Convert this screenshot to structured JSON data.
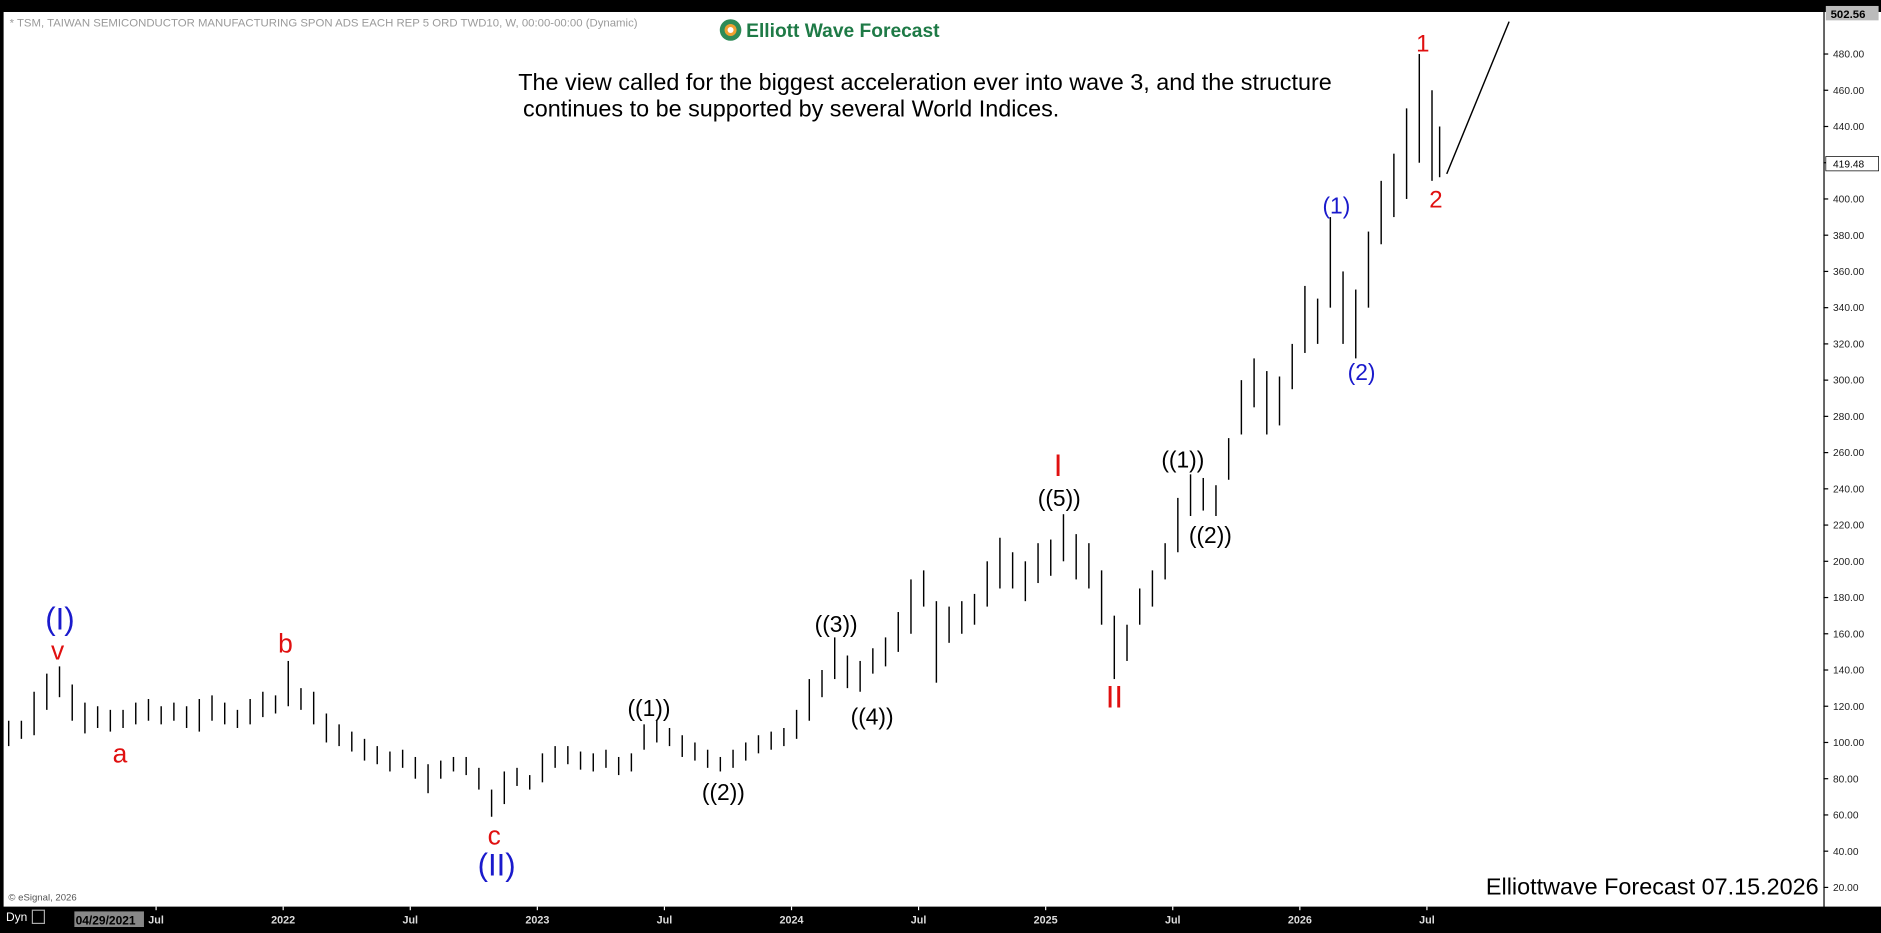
{
  "header": "* TSM, TAIWAN SEMICONDUCTOR MANUFACTURING SPON ADS EACH REP 5 ORD TWD10, W, 00:00-00:00 (Dynamic)",
  "logo": "Elliott Wave Forecast",
  "description": [
    "The view called for the biggest acceleration ever into wave 3, and the structure",
    "continues to be supported by several World Indices."
  ],
  "copyright": "© eSignal, 2026",
  "footer": "Elliottwave Forecast 07.15.2026",
  "mode": "Dyn",
  "cursor_date": "04/29/2021",
  "chart_data": {
    "type": "ohlc",
    "color": "#000000",
    "x": [
      2020.92,
      2020.97,
      2021.02,
      2021.07,
      2021.12,
      2021.17,
      2021.22,
      2021.27,
      2021.32,
      2021.37,
      2021.42,
      2021.47,
      2021.52,
      2021.57,
      2021.62,
      2021.67,
      2021.72,
      2021.77,
      2021.82,
      2021.87,
      2021.92,
      2021.97,
      2022.02,
      2022.07,
      2022.12,
      2022.17,
      2022.22,
      2022.27,
      2022.32,
      2022.37,
      2022.42,
      2022.47,
      2022.52,
      2022.57,
      2022.62,
      2022.67,
      2022.72,
      2022.77,
      2022.82,
      2022.87,
      2022.92,
      2022.97,
      2023.02,
      2023.07,
      2023.12,
      2023.17,
      2023.22,
      2023.27,
      2023.32,
      2023.37,
      2023.42,
      2023.47,
      2023.52,
      2023.57,
      2023.62,
      2023.67,
      2023.72,
      2023.77,
      2023.82,
      2023.87,
      2023.92,
      2023.97,
      2024.02,
      2024.07,
      2024.12,
      2024.17,
      2024.22,
      2024.27,
      2024.32,
      2024.37,
      2024.42,
      2024.47,
      2024.52,
      2024.57,
      2024.62,
      2024.67,
      2024.72,
      2024.77,
      2024.82,
      2024.87,
      2024.92,
      2024.97,
      2025.02,
      2025.07,
      2025.12,
      2025.17,
      2025.22,
      2025.27,
      2025.32,
      2025.37,
      2025.42,
      2025.47,
      2025.52,
      2025.57,
      2025.62,
      2025.67,
      2025.72,
      2025.77,
      2025.82,
      2025.87,
      2025.92,
      2025.97,
      2026.02,
      2026.07,
      2026.12,
      2026.17,
      2026.22,
      2026.27,
      2026.32,
      2026.37,
      2026.42,
      2026.47,
      2026.52,
      2026.55
    ],
    "low": [
      98,
      102,
      104,
      118,
      125,
      112,
      105,
      108,
      106,
      108,
      110,
      112,
      110,
      112,
      108,
      106,
      112,
      110,
      108,
      110,
      114,
      116,
      120,
      118,
      110,
      100,
      98,
      95,
      90,
      88,
      84,
      86,
      80,
      72,
      80,
      84,
      82,
      74,
      59,
      66,
      76,
      74,
      78,
      86,
      88,
      85,
      84,
      86,
      82,
      84,
      96,
      100,
      98,
      92,
      90,
      86,
      84,
      86,
      90,
      94,
      96,
      98,
      102,
      112,
      125,
      135,
      130,
      128,
      138,
      142,
      150,
      160,
      175,
      133,
      155,
      160,
      165,
      175,
      185,
      185,
      178,
      188,
      192,
      200,
      190,
      185,
      165,
      135,
      145,
      165,
      175,
      190,
      205,
      225,
      228,
      225,
      245,
      270,
      285,
      270,
      275,
      295,
      315,
      320,
      340,
      320,
      312,
      340,
      375,
      390,
      400,
      420,
      410,
      412
    ],
    "high": [
      112,
      112,
      128,
      138,
      142,
      132,
      122,
      120,
      118,
      118,
      122,
      124,
      120,
      122,
      120,
      124,
      126,
      122,
      118,
      124,
      128,
      126,
      145,
      130,
      128,
      116,
      110,
      106,
      102,
      98,
      95,
      96,
      92,
      88,
      90,
      92,
      92,
      86,
      74,
      84,
      86,
      82,
      94,
      98,
      98,
      95,
      94,
      96,
      92,
      94,
      110,
      112,
      108,
      104,
      100,
      96,
      92,
      96,
      100,
      104,
      106,
      108,
      118,
      135,
      140,
      158,
      148,
      145,
      152,
      158,
      172,
      190,
      195,
      178,
      175,
      178,
      182,
      200,
      213,
      205,
      200,
      210,
      212,
      226,
      215,
      210,
      195,
      170,
      165,
      185,
      195,
      210,
      235,
      248,
      246,
      242,
      268,
      300,
      312,
      305,
      302,
      320,
      352,
      345,
      390,
      360,
      350,
      382,
      410,
      425,
      450,
      480,
      460,
      440
    ],
    "ylim": [
      9.4,
      503.2
    ],
    "yticks": [
      {
        "value": 20,
        "label": "20.00"
      },
      {
        "value": 40,
        "label": "40.00"
      },
      {
        "value": 60,
        "label": "60.00"
      },
      {
        "value": 80,
        "label": "80.00"
      },
      {
        "value": 100,
        "label": "100.00"
      },
      {
        "value": 120,
        "label": "120.00"
      },
      {
        "value": 140,
        "label": "140.00"
      },
      {
        "value": 160,
        "label": "160.00"
      },
      {
        "value": 180,
        "label": "180.00"
      },
      {
        "value": 200,
        "label": "200.00"
      },
      {
        "value": 220,
        "label": "220.00"
      },
      {
        "value": 240,
        "label": "240.00"
      },
      {
        "value": 260,
        "label": "260.00"
      },
      {
        "value": 280,
        "label": "280.00"
      },
      {
        "value": 300,
        "label": "300.00"
      },
      {
        "value": 320,
        "label": "320.00"
      },
      {
        "value": 340,
        "label": "340.00"
      },
      {
        "value": 360,
        "label": "360.00"
      },
      {
        "value": 380,
        "label": "380.00"
      },
      {
        "value": 400,
        "label": "400.00"
      },
      {
        "value": 420,
        "label": "420.00"
      },
      {
        "value": 440,
        "label": "440.00"
      },
      {
        "value": 460,
        "label": "460.00"
      },
      {
        "value": 480,
        "label": "480.00"
      }
    ],
    "last_price": {
      "value": 419.48,
      "label": "419.48"
    },
    "top_price": {
      "value": 502.56,
      "label": "502.56"
    },
    "xlim": [
      2020.9,
      2028.06
    ],
    "xticks": [
      {
        "value": 2021.5,
        "label": "Jul"
      },
      {
        "value": 2022,
        "label": "2022"
      },
      {
        "value": 2022.5,
        "label": "Jul"
      },
      {
        "value": 2023,
        "label": "2023"
      },
      {
        "value": 2023.5,
        "label": "Jul"
      },
      {
        "value": 2024,
        "label": "2024"
      },
      {
        "value": 2024.5,
        "label": "Jul"
      },
      {
        "value": 2025,
        "label": "2025"
      },
      {
        "value": 2025.5,
        "label": "Jul"
      },
      {
        "value": 2026,
        "label": "2026"
      },
      {
        "value": 2026.5,
        "label": "Jul"
      }
    ],
    "annotations": [
      {
        "text": "(I)",
        "color": "#1a1acc"
      },
      {
        "text": "v",
        "color": "#e01010"
      },
      {
        "text": "a",
        "color": "#e01010"
      },
      {
        "text": "b",
        "color": "#e01010"
      },
      {
        "text": "c",
        "color": "#e01010"
      },
      {
        "text": "(II)",
        "color": "#1a1acc"
      },
      {
        "text": "((1))",
        "color": "#000000"
      },
      {
        "text": "((2))",
        "color": "#000000"
      },
      {
        "text": "((3))",
        "color": "#000000"
      },
      {
        "text": "((4))",
        "color": "#000000"
      },
      {
        "text": "I",
        "color": "#e01010"
      },
      {
        "text": "((5))",
        "color": "#000000"
      },
      {
        "text": "II",
        "color": "#e01010"
      },
      {
        "text": "((1))",
        "color": "#000000"
      },
      {
        "text": "((2))",
        "color": "#000000"
      },
      {
        "text": "(1)",
        "color": "#1a1acc"
      },
      {
        "text": "(2)",
        "color": "#1a1acc"
      },
      {
        "text": "1",
        "color": "#e01010"
      },
      {
        "text": "2",
        "color": "#e01010"
      }
    ]
  }
}
